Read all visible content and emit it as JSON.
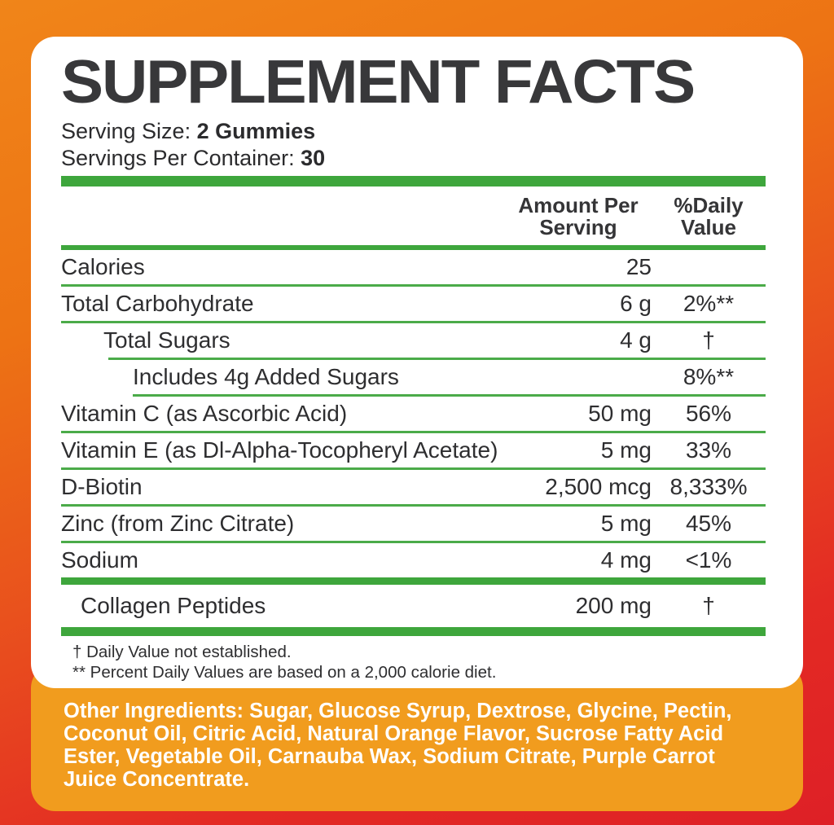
{
  "header": {
    "title": "SUPPLEMENT FACTS",
    "serving_size_label": "Serving Size:",
    "serving_size_value": "2 Gummies",
    "servings_per_container_label": "Servings Per Container:",
    "servings_per_container_value": "30"
  },
  "table": {
    "columns": {
      "amount_line1": "Amount Per",
      "amount_line2": "Serving",
      "dv_line1": "%Daily",
      "dv_line2": "Value"
    },
    "rows": [
      {
        "name": "Calories",
        "amount": "25",
        "dv": ""
      },
      {
        "name": "Total Carbohydrate",
        "amount": "6 g",
        "dv": "2%**"
      },
      {
        "name": "Total Sugars",
        "amount": "4 g",
        "dv": "†"
      },
      {
        "name": "Includes 4g Added Sugars",
        "amount": "",
        "dv": "8%**"
      },
      {
        "name": "Vitamin C (as Ascorbic Acid)",
        "amount": "50 mg",
        "dv": "56%"
      },
      {
        "name": "Vitamin E (as Dl-Alpha-Tocopheryl Acetate)",
        "amount": "5 mg",
        "dv": "33%"
      },
      {
        "name": "D-Biotin",
        "amount": "2,500 mcg",
        "dv": "8,333%"
      },
      {
        "name": "Zinc (from Zinc Citrate)",
        "amount": "5 mg",
        "dv": "45%"
      },
      {
        "name": "Sodium",
        "amount": "4 mg",
        "dv": "<1%"
      }
    ],
    "collagen_row": {
      "name": "Collagen Peptides",
      "amount": "200 mg",
      "dv": "†"
    }
  },
  "footnotes": {
    "line1": "† Daily Value not established.",
    "line2": "** Percent Daily Values are based on a 2,000 calorie diet."
  },
  "other_ingredients": {
    "label": "Other Ingredients:",
    "text": " Sugar, Glucose Syrup, Dextrose, Glycine, Pectin, Coconut Oil, Citric Acid, Natural Orange Flavor, Sucrose Fatty Acid Ester, Vegetable Oil, Carnauba Wax, Sodium Citrate, Purple Carrot Juice Concentrate."
  },
  "colors": {
    "green_bar": "#3EA63C",
    "green_separator": "#4BAB49",
    "panel_orange": "#F19C1E",
    "background_orange": "#ED7314",
    "background_red": "#DE2026",
    "text_dark": "#2E2E30"
  }
}
